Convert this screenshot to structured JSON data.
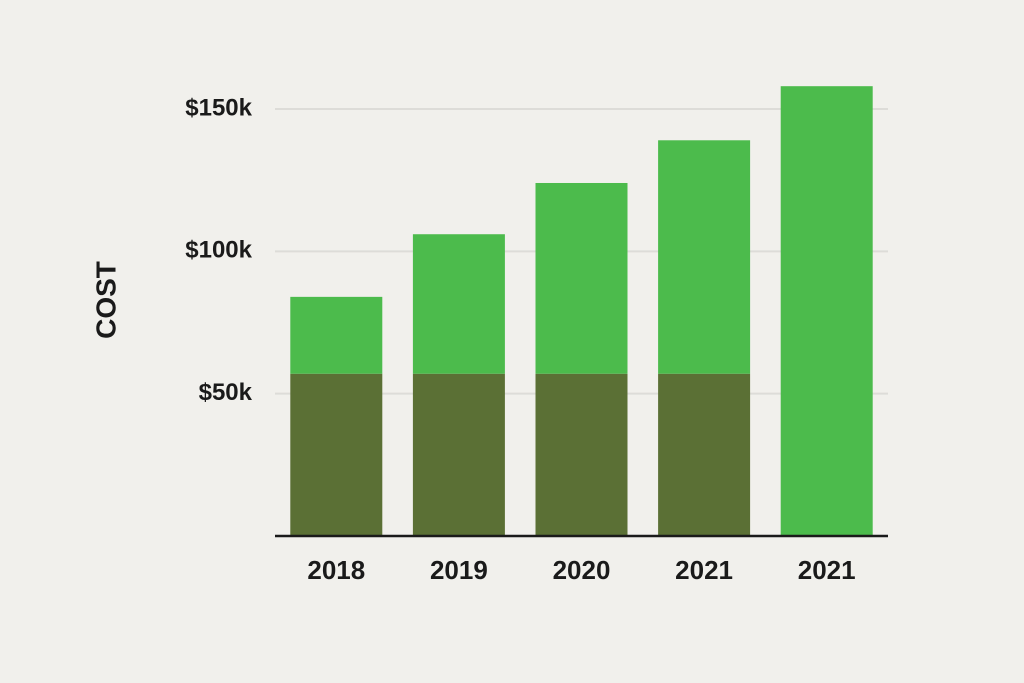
{
  "chart_data": {
    "type": "stacked_bar",
    "y_label": "COST",
    "categories": [
      "2018",
      "2019",
      "2020",
      "2021",
      "2021"
    ],
    "series": [
      {
        "color": "#5b7035",
        "values": [
          57,
          57,
          57,
          57,
          0
        ]
      },
      {
        "color": "#4cbb4c",
        "values": [
          27,
          49,
          67,
          82,
          158
        ]
      }
    ],
    "ylim": [
      0,
      160
    ],
    "yticks": [
      {
        "value": 50,
        "label": "$50k"
      },
      {
        "value": 100,
        "label": "$100k"
      },
      {
        "value": 150,
        "label": "$150k"
      }
    ],
    "grid": true
  }
}
